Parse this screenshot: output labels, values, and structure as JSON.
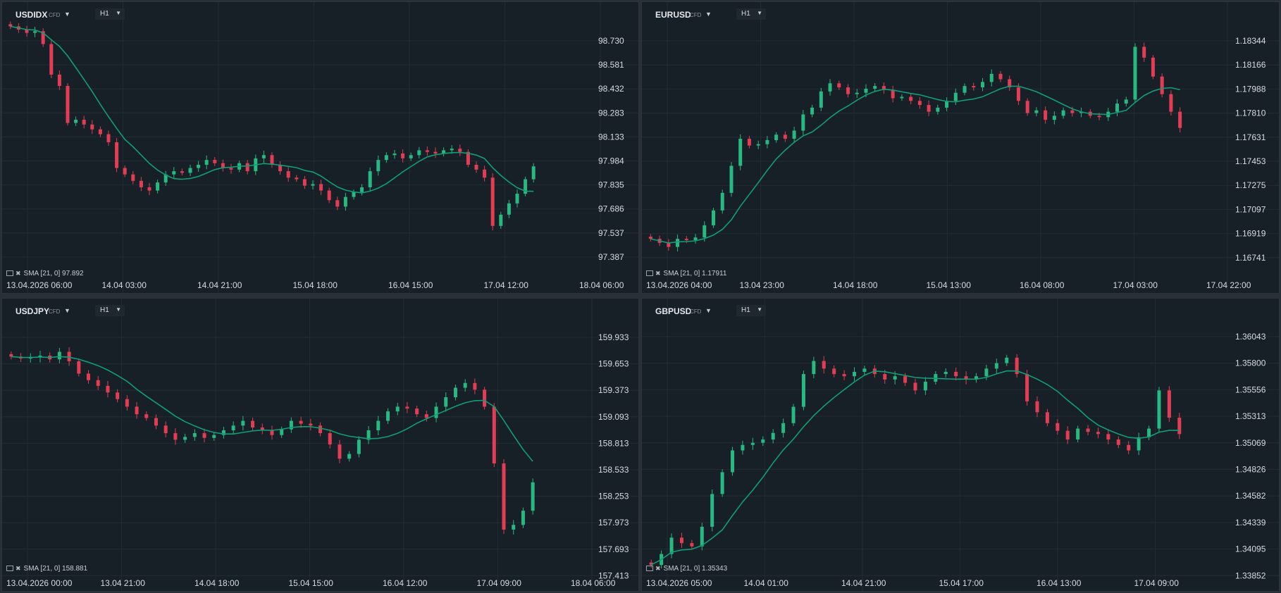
{
  "colors": {
    "up": "#28b882",
    "down": "#e23d55",
    "sma": "#0f9e78",
    "grid": "#222b33",
    "background": "#182027"
  },
  "icons": {
    "dropdown": "caret-down",
    "indicator_settings": "monitor-icon",
    "remove": "close-icon"
  },
  "panels": [
    {
      "symbol": "USDIDX",
      "market": "CFD",
      "timeframe": "H1",
      "yaxis": [
        "98.730",
        "98.581",
        "98.432",
        "98.283",
        "98.133",
        "97.984",
        "97.835",
        "97.686",
        "97.537",
        "97.387"
      ],
      "xaxis": [
        "13.04.2026 06:00",
        "14.04 03:00",
        "14.04 21:00",
        "15.04 18:00",
        "16.04 15:00",
        "17.04 12:00",
        "18.04 06:00"
      ],
      "indicator": "SMA [21, 0] 97.892",
      "series": [
        98.82,
        98.8,
        98.78,
        98.79,
        98.71,
        98.52,
        98.45,
        98.22,
        98.24,
        98.21,
        98.18,
        98.15,
        98.1,
        97.94,
        97.9,
        97.86,
        97.82,
        97.8,
        97.85,
        97.9,
        97.92,
        97.91,
        97.94,
        97.96,
        97.99,
        97.97,
        97.94,
        97.93,
        97.97,
        97.92,
        98.0,
        98.02,
        97.96,
        97.92,
        97.88,
        97.87,
        97.83,
        97.84,
        97.8,
        97.74,
        97.7,
        97.76,
        97.79,
        97.82,
        97.92,
        97.99,
        98.02,
        98.03,
        98.0,
        98.02,
        98.05,
        98.04,
        98.03,
        98.05,
        98.06,
        98.04,
        97.96,
        97.93,
        97.88,
        97.58,
        97.65,
        97.72,
        97.78,
        97.87,
        97.95
      ]
    },
    {
      "symbol": "EURUSD",
      "market": "CFD",
      "timeframe": "H1",
      "yaxis": [
        "1.18344",
        "1.18166",
        "1.17988",
        "1.17810",
        "1.17631",
        "1.17453",
        "1.17275",
        "1.17097",
        "1.16919",
        "1.16741"
      ],
      "xaxis": [
        "13.04.2026 04:00",
        "13.04 23:00",
        "14.04 18:00",
        "15.04 13:00",
        "16.04 08:00",
        "17.04 03:00",
        "17.04 22:00"
      ],
      "indicator": "SMA [21, 0] 1.17911",
      "series": [
        1.1688,
        1.1685,
        1.1682,
        1.1688,
        1.1687,
        1.1689,
        1.1698,
        1.1709,
        1.1722,
        1.1742,
        1.1762,
        1.1757,
        1.1758,
        1.1761,
        1.1765,
        1.1762,
        1.1768,
        1.178,
        1.1785,
        1.1797,
        1.1803,
        1.18,
        1.1795,
        1.1796,
        1.1799,
        1.1801,
        1.1798,
        1.1792,
        1.1793,
        1.179,
        1.1787,
        1.1782,
        1.1785,
        1.179,
        1.1796,
        1.1801,
        1.18,
        1.1804,
        1.181,
        1.1806,
        1.18,
        1.179,
        1.1781,
        1.1783,
        1.1776,
        1.1779,
        1.1783,
        1.1781,
        1.1782,
        1.1779,
        1.1778,
        1.1782,
        1.1788,
        1.1791,
        1.183,
        1.1822,
        1.1808,
        1.1795,
        1.1782,
        1.177
      ]
    },
    {
      "symbol": "USDJPY",
      "market": "CFD",
      "timeframe": "H1",
      "yaxis": [
        "159.933",
        "159.653",
        "159.373",
        "159.093",
        "158.813",
        "158.533",
        "158.253",
        "157.973",
        "157.693",
        "157.413"
      ],
      "xaxis": [
        "13.04.2026 00:00",
        "13.04 21:00",
        "14.04 18:00",
        "15.04 15:00",
        "16.04 12:00",
        "17.04 09:00",
        "18.04 06:00"
      ],
      "indicator": "SMA [21, 0] 158.881",
      "series": [
        159.73,
        159.71,
        159.72,
        159.74,
        159.7,
        159.78,
        159.68,
        159.55,
        159.48,
        159.42,
        159.35,
        159.28,
        159.2,
        159.12,
        159.08,
        159.0,
        158.92,
        158.85,
        158.88,
        158.92,
        158.87,
        158.9,
        158.95,
        159.0,
        159.05,
        158.98,
        158.95,
        158.9,
        158.96,
        159.05,
        159.02,
        159.0,
        158.92,
        158.8,
        158.65,
        158.7,
        158.85,
        158.95,
        159.05,
        159.15,
        159.2,
        159.18,
        159.12,
        159.08,
        159.2,
        159.3,
        159.4,
        159.45,
        159.38,
        159.2,
        158.6,
        157.9,
        157.95,
        158.1,
        158.4
      ]
    },
    {
      "symbol": "GBPUSD",
      "market": "CFD",
      "timeframe": "H1",
      "yaxis": [
        "1.36043",
        "1.35800",
        "1.35556",
        "1.35313",
        "1.35069",
        "1.34826",
        "1.34582",
        "1.34339",
        "1.34095",
        "1.33852"
      ],
      "xaxis": [
        "13.04.2026 05:00",
        "14.04 01:00",
        "14.04 21:00",
        "15.04 17:00",
        "16.04 13:00",
        "17.04 09:00"
      ],
      "indicator": "SMA [21, 0] 1.35343",
      "series": [
        1.3395,
        1.3405,
        1.342,
        1.3415,
        1.3412,
        1.343,
        1.346,
        1.348,
        1.35,
        1.3505,
        1.3507,
        1.351,
        1.3516,
        1.3525,
        1.354,
        1.357,
        1.3582,
        1.3575,
        1.357,
        1.3568,
        1.3572,
        1.3575,
        1.357,
        1.3565,
        1.3568,
        1.3562,
        1.3555,
        1.3563,
        1.357,
        1.3572,
        1.3568,
        1.3565,
        1.3568,
        1.3575,
        1.358,
        1.3585,
        1.357,
        1.3545,
        1.3535,
        1.3525,
        1.3518,
        1.351,
        1.352,
        1.3517,
        1.3515,
        1.351,
        1.3505,
        1.35,
        1.3512,
        1.352,
        1.3555,
        1.353,
        1.3515
      ]
    }
  ]
}
